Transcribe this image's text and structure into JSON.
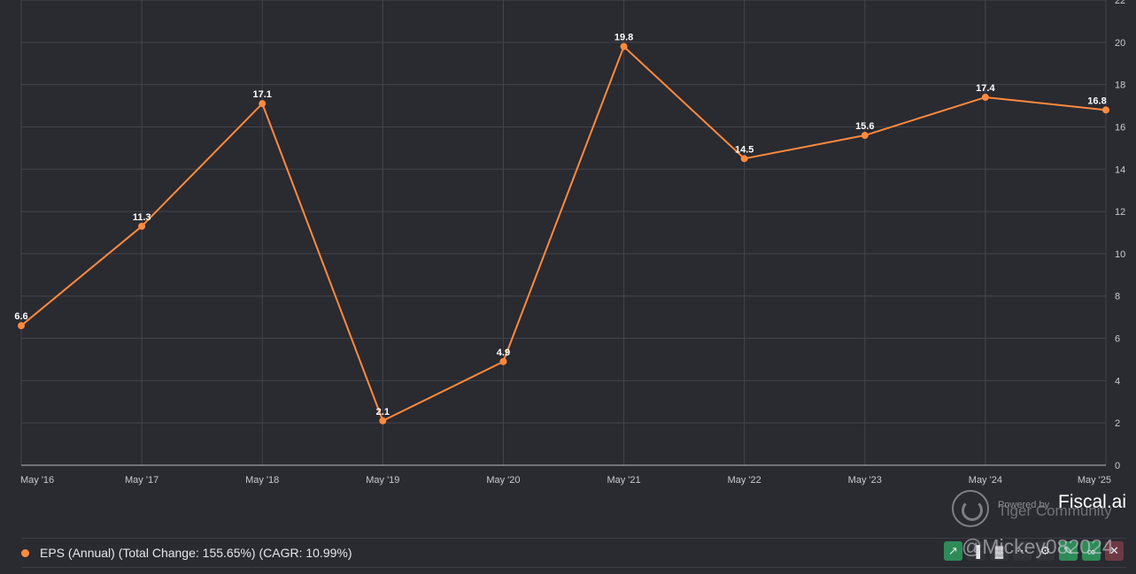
{
  "chart_data": {
    "type": "line",
    "x": [
      "May '16",
      "May '17",
      "May '18",
      "May '19",
      "May '20",
      "May '21",
      "May '22",
      "May '23",
      "May '24",
      "May '25"
    ],
    "series": [
      {
        "name": "EPS (Annual)",
        "values": [
          6.6,
          11.3,
          17.1,
          2.1,
          4.9,
          19.8,
          14.5,
          15.6,
          17.4,
          16.8
        ],
        "color": "#ff8a3d"
      }
    ],
    "ylim": [
      0,
      22
    ],
    "yticks": [
      "0",
      "2",
      "4",
      "6",
      "8",
      "10",
      "12",
      "14",
      "16",
      "18",
      "20",
      "22"
    ],
    "y_axis_side": "right",
    "grid": true,
    "data_labels": true,
    "legend_placement": "bottom"
  },
  "legend": {
    "text": "EPS (Annual) (Total Change: 155.65%) (CAGR: 10.99%)"
  },
  "branding": {
    "powered_by": "Powered by",
    "brand": "Fiscal.ai",
    "community": "Tiger Community",
    "watermark": "@Mickey082024"
  },
  "toolbar": {
    "icons": [
      "line-chart-icon",
      "bar-chart-icon",
      "bar-chart-icon",
      "more-icon",
      "gear-icon",
      "pin-icon",
      "link-icon",
      "close-icon"
    ]
  },
  "colors": {
    "background": "#2a2a31",
    "series": "#ff8a3d",
    "grid": "#44444c"
  }
}
